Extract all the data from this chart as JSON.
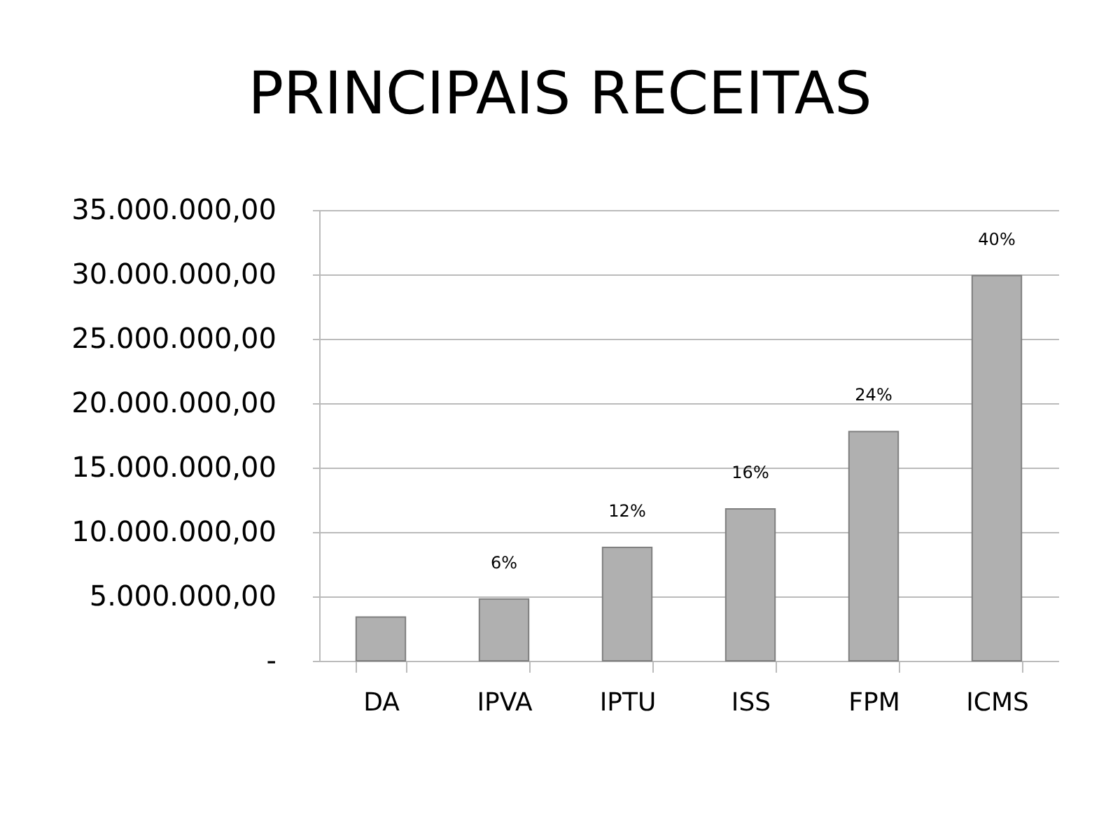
{
  "chart_data": {
    "type": "bar",
    "title": "PRINCIPAIS RECEITAS",
    "categories": [
      "DA",
      "IPVA",
      "IPTU",
      "ISS",
      "FPM",
      "ICMS"
    ],
    "values": [
      3400000,
      4800000,
      8800000,
      11800000,
      17800000,
      29900000
    ],
    "color": "#b0b0b0",
    "annotations": [
      {
        "text": "6%",
        "x": "IPVA",
        "y": 4800000
      },
      {
        "text": "12%",
        "x": "IPTU",
        "y": 8800000
      },
      {
        "text": "16%",
        "x": "ISS",
        "y": 11800000
      },
      {
        "text": "24%",
        "x": "FPM",
        "y": 17800000
      },
      {
        "text": "40%",
        "x": "ICMS",
        "y": 29900000
      }
    ],
    "ylim": [
      0,
      35000000
    ],
    "yticks": [
      {
        "value": 0,
        "label": "-"
      },
      {
        "value": 5000000,
        "label": "5.000.000,00"
      },
      {
        "value": 10000000,
        "label": "10.000.000,00"
      },
      {
        "value": 15000000,
        "label": "15.000.000,00"
      },
      {
        "value": 20000000,
        "label": "20.000.000,00"
      },
      {
        "value": 25000000,
        "label": "25.000.000,00"
      },
      {
        "value": 30000000,
        "label": "30.000.000,00"
      },
      {
        "value": 35000000,
        "label": "35.000.000,00"
      }
    ],
    "grid": "y"
  }
}
